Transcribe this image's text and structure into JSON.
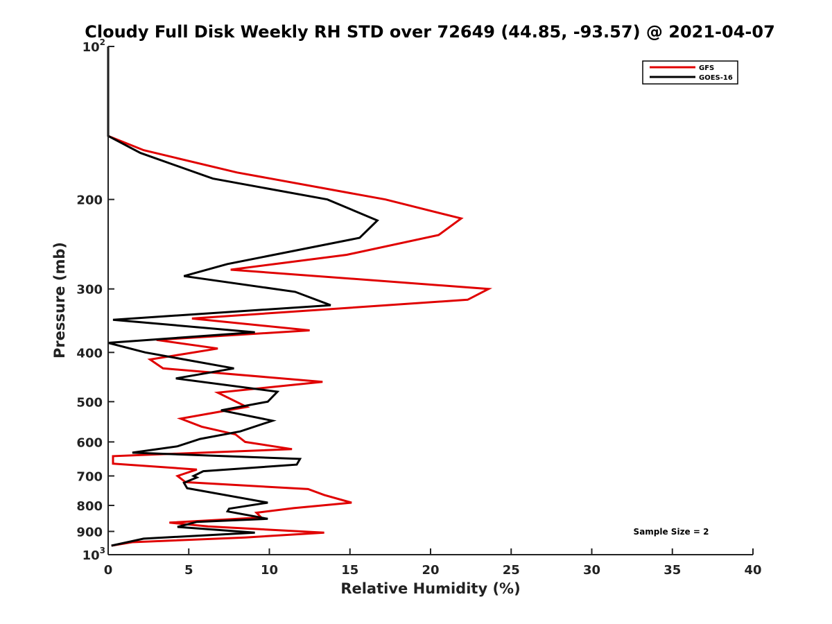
{
  "chart_data": {
    "type": "line",
    "title": "Cloudy Full Disk Weekly RH STD over 72649 (44.85, -93.57) @ 2021-04-07",
    "xlabel": "Relative Humidity (%)",
    "ylabel": "Pressure (mb)",
    "xlim": [
      0,
      40
    ],
    "ylim": [
      100,
      1000
    ],
    "y_scale": "log",
    "y_reversed": true,
    "grid": false,
    "legend_position": "top-right",
    "x_ticks": [
      "0",
      "5",
      "10",
      "15",
      "20",
      "25",
      "30",
      "35",
      "40"
    ],
    "y_ticks": [
      {
        "value": 100,
        "base": "10",
        "exp": "2"
      },
      {
        "value": 200,
        "label": "200"
      },
      {
        "value": 300,
        "label": "300"
      },
      {
        "value": 400,
        "label": "400"
      },
      {
        "value": 500,
        "label": "500"
      },
      {
        "value": 600,
        "label": "600"
      },
      {
        "value": 700,
        "label": "700"
      },
      {
        "value": 800,
        "label": "800"
      },
      {
        "value": 900,
        "label": "900"
      },
      {
        "value": 1000,
        "base": "10",
        "exp": "3"
      }
    ],
    "annotation": "Sample Size = 2",
    "series": [
      {
        "name": "GFS",
        "color": "#e00000",
        "points": [
          [
            0.0,
            100
          ],
          [
            0.0,
            150
          ],
          [
            2.2,
            160
          ],
          [
            8.0,
            177
          ],
          [
            17.2,
            200
          ],
          [
            21.9,
            218
          ],
          [
            20.5,
            235
          ],
          [
            14.8,
            257
          ],
          [
            7.6,
            275
          ],
          [
            23.6,
            300
          ],
          [
            22.3,
            315
          ],
          [
            5.2,
            343
          ],
          [
            12.5,
            362
          ],
          [
            3.0,
            378
          ],
          [
            6.8,
            393
          ],
          [
            2.6,
            413
          ],
          [
            3.4,
            430
          ],
          [
            13.3,
            457
          ],
          [
            6.8,
            480
          ],
          [
            8.6,
            512
          ],
          [
            4.5,
            540
          ],
          [
            5.8,
            560
          ],
          [
            7.9,
            580
          ],
          [
            8.5,
            600
          ],
          [
            11.4,
            620
          ],
          [
            0.3,
            640
          ],
          [
            0.3,
            662
          ],
          [
            5.5,
            680
          ],
          [
            4.3,
            700
          ],
          [
            4.8,
            720
          ],
          [
            12.4,
            743
          ],
          [
            13.4,
            763
          ],
          [
            15.1,
            790
          ],
          [
            11.5,
            810
          ],
          [
            9.2,
            827
          ],
          [
            9.5,
            845
          ],
          [
            3.8,
            865
          ],
          [
            6.2,
            880
          ],
          [
            13.4,
            905
          ],
          [
            8.5,
            925
          ],
          [
            1.5,
            945
          ],
          [
            0.2,
            960
          ]
        ]
      },
      {
        "name": "GOES-16",
        "color": "#000000",
        "points": [
          [
            0.0,
            100
          ],
          [
            0.0,
            150
          ],
          [
            2.0,
            162
          ],
          [
            6.5,
            182
          ],
          [
            13.6,
            200
          ],
          [
            16.7,
            220
          ],
          [
            15.6,
            238
          ],
          [
            7.4,
            268
          ],
          [
            4.7,
            283
          ],
          [
            11.6,
            304
          ],
          [
            13.8,
            323
          ],
          [
            0.3,
            345
          ],
          [
            9.1,
            365
          ],
          [
            0.0,
            383
          ],
          [
            2.3,
            400
          ],
          [
            7.8,
            430
          ],
          [
            4.2,
            450
          ],
          [
            10.5,
            478
          ],
          [
            9.9,
            500
          ],
          [
            7.0,
            520
          ],
          [
            10.2,
            545
          ],
          [
            8.2,
            572
          ],
          [
            5.7,
            592
          ],
          [
            4.3,
            612
          ],
          [
            1.5,
            630
          ],
          [
            11.9,
            648
          ],
          [
            11.7,
            665
          ],
          [
            5.9,
            685
          ],
          [
            5.3,
            700
          ],
          [
            5.5,
            705
          ],
          [
            4.7,
            722
          ],
          [
            4.9,
            740
          ],
          [
            9.9,
            790
          ],
          [
            7.5,
            812
          ],
          [
            7.4,
            822
          ],
          [
            9.9,
            850
          ],
          [
            5.5,
            862
          ],
          [
            4.3,
            882
          ],
          [
            9.1,
            905
          ],
          [
            2.2,
            930
          ],
          [
            0.2,
            960
          ]
        ]
      }
    ]
  }
}
